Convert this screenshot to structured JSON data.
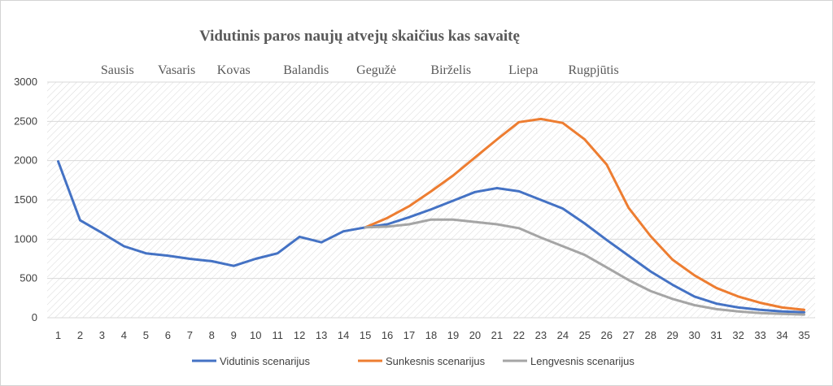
{
  "chart_data": {
    "type": "line",
    "title": "Vidutinis paros naujų atvejų skaičius kas savaitę",
    "xlabel": "",
    "ylabel": "",
    "ylim": [
      0,
      3000
    ],
    "yticks": [
      0,
      500,
      1000,
      1500,
      2000,
      2500,
      3000
    ],
    "grid": true,
    "legend_position": "bottom",
    "month_labels": [
      {
        "label": "Sausis",
        "week": 3.7
      },
      {
        "label": "Vasaris",
        "week": 6.4
      },
      {
        "label": "Kovas",
        "week": 9.0
      },
      {
        "label": "Balandis",
        "week": 12.3
      },
      {
        "label": "Gegužė",
        "week": 15.5
      },
      {
        "label": "Birželis",
        "week": 18.9
      },
      {
        "label": "Liepa",
        "week": 22.2
      },
      {
        "label": "Rugpjūtis",
        "week": 25.4
      }
    ],
    "x": [
      1,
      2,
      3,
      4,
      5,
      6,
      7,
      8,
      9,
      10,
      11,
      12,
      13,
      14,
      15,
      16,
      17,
      18,
      19,
      20,
      21,
      22,
      23,
      24,
      25,
      26,
      27,
      28,
      29,
      30,
      31,
      32,
      33,
      34,
      35
    ],
    "series": [
      {
        "name": "Vidutinis scenarijus",
        "color": "#4472c4",
        "values": [
          1990,
          1240,
          1080,
          910,
          820,
          790,
          750,
          720,
          660,
          750,
          820,
          1030,
          960,
          1100,
          1150,
          1190,
          1280,
          1380,
          1490,
          1600,
          1650,
          1610,
          1500,
          1390,
          1200,
          990,
          790,
          590,
          420,
          270,
          180,
          130,
          100,
          80,
          70
        ]
      },
      {
        "name": "Sunkesnis scenarijus",
        "color": "#ed7d31",
        "x": [
          15,
          16,
          17,
          18,
          19,
          20,
          21,
          22,
          23,
          24,
          25,
          26,
          27,
          28,
          29,
          30,
          31,
          32,
          33,
          34,
          35
        ],
        "values": [
          1150,
          1270,
          1420,
          1610,
          1810,
          2040,
          2270,
          2490,
          2530,
          2480,
          2270,
          1950,
          1400,
          1040,
          740,
          540,
          380,
          270,
          190,
          130,
          100
        ]
      },
      {
        "name": "Lengvesnis scenarijus",
        "color": "#a5a5a5",
        "x": [
          15,
          16,
          17,
          18,
          19,
          20,
          21,
          22,
          23,
          24,
          25,
          26,
          27,
          28,
          29,
          30,
          31,
          32,
          33,
          34,
          35
        ],
        "values": [
          1150,
          1160,
          1190,
          1250,
          1250,
          1220,
          1190,
          1140,
          1020,
          910,
          800,
          640,
          480,
          340,
          240,
          160,
          110,
          80,
          60,
          50,
          40
        ]
      }
    ]
  }
}
